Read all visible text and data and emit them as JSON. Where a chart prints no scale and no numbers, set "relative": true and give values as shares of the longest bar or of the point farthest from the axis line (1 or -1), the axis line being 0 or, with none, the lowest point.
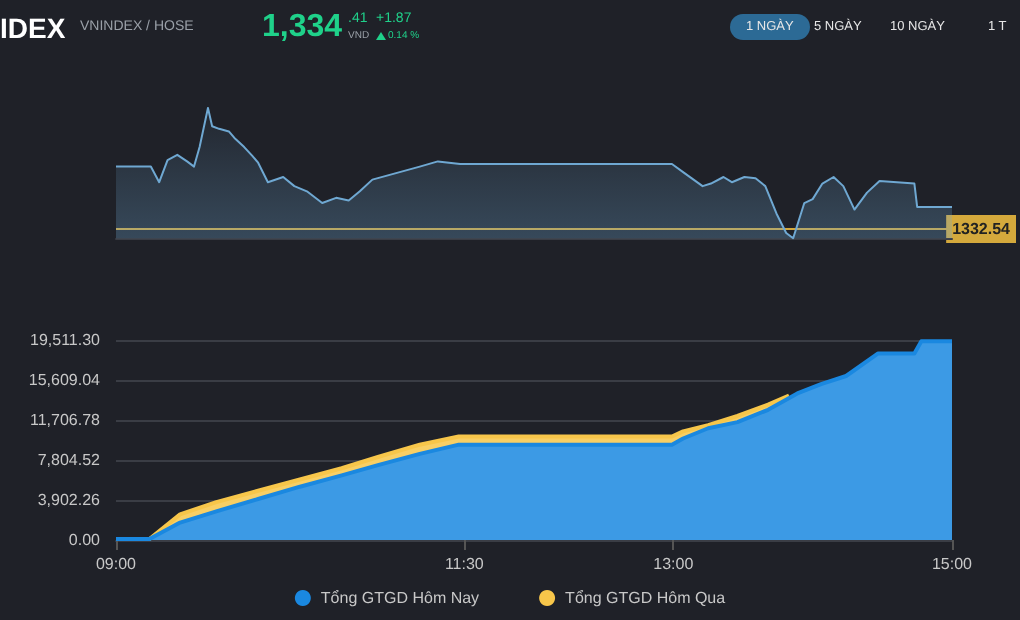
{
  "chart_data": [
    {
      "type": "other",
      "title": "IDEX",
      "subtitle": "VNINDEX / HOSE",
      "annotations": [
        "1,334",
        ".41",
        "VND",
        "+1.87",
        "0.14 %",
        "1 NGÀY",
        "5 NGÀY",
        "10 NGÀY",
        "1 T"
      ]
    },
    {
      "type": "area",
      "relative": true,
      "xlim": [
        9,
        15
      ],
      "x": [
        9.0,
        9.25,
        9.31,
        9.37,
        9.44,
        9.51,
        9.56,
        9.6,
        9.66,
        9.69,
        9.74,
        9.81,
        9.85,
        9.92,
        9.98,
        10.02,
        10.09,
        10.2,
        10.28,
        10.37,
        10.48,
        10.58,
        10.67,
        10.75,
        10.84,
        11.01,
        11.18,
        11.31,
        11.47,
        12.99,
        13.08,
        13.21,
        13.27,
        13.36,
        13.42,
        13.51,
        13.59,
        13.66,
        13.74,
        13.81,
        13.86,
        13.94,
        14.0,
        14.07,
        14.15,
        14.22,
        14.3,
        14.39,
        14.48,
        14.73,
        14.75,
        15.0
      ],
      "series": [
        {
          "color": "#6fa8d2",
          "values": [
            0.55,
            0.55,
            0.43,
            0.6,
            0.64,
            0.59,
            0.55,
            0.7,
            1,
            0.86,
            0.84,
            0.82,
            0.77,
            0.7,
            0.63,
            0.58,
            0.43,
            0.47,
            0.4,
            0.36,
            0.27,
            0.31,
            0.29,
            0.36,
            0.45,
            0.5,
            0.55,
            0.59,
            0.57,
            0.57,
            0.5,
            0.4,
            0.42,
            0.47,
            0.43,
            0.47,
            0.46,
            0.4,
            0.19,
            0.04,
            0,
            0.27,
            0.3,
            0.42,
            0.47,
            0.4,
            0.22,
            0.35,
            0.44,
            0.42,
            0.24,
            0.24
          ]
        }
      ],
      "annotations": [
        "1332.54"
      ],
      "ref_lines": [
        {
          "axis": "y",
          "value": 0.07,
          "color": "#d4a93c"
        }
      ]
    },
    {
      "type": "area",
      "xlim": [
        9,
        15
      ],
      "xticks": [
        {
          "value": 9,
          "label": "09:00"
        },
        {
          "value": 11.5,
          "label": "11:30"
        },
        {
          "value": 13,
          "label": "13:00"
        },
        {
          "value": 15,
          "label": "15:00"
        }
      ],
      "ylim": [
        0,
        19511.3
      ],
      "yticks": [
        {
          "value": 0,
          "label": "0.00"
        },
        {
          "value": 3902.26,
          "label": "3,902.26"
        },
        {
          "value": 7804.52,
          "label": "7,804.52"
        },
        {
          "value": 11706.78,
          "label": "11,706.78"
        },
        {
          "value": 15609.04,
          "label": "15,609.04"
        },
        {
          "value": 19511.3,
          "label": "19,511.30"
        }
      ],
      "grid": "y",
      "legend": "bottom",
      "series": [
        {
          "name": "Tổng GTGD Hôm Nay",
          "color": "#1a88e0",
          "x": [
            9.0,
            9.24,
            9.46,
            9.72,
            10.02,
            10.32,
            10.62,
            10.88,
            11.18,
            11.46,
            12.99,
            13.07,
            13.25,
            13.46,
            13.68,
            13.89,
            14.06,
            14.24,
            14.47,
            14.73,
            14.78,
            15.0
          ],
          "values": [
            100,
            100,
            1700,
            2800,
            4000,
            5200,
            6300,
            7300,
            8400,
            9300,
            9300,
            9900,
            10900,
            11500,
            12700,
            14300,
            15200,
            16000,
            18200,
            18200,
            19400,
            19400
          ]
        },
        {
          "name": "Tổng GTGD Hôm Qua",
          "color": "#f7c64a",
          "x": [
            9.0,
            9.24,
            9.46,
            9.72,
            10.02,
            10.32,
            10.62,
            10.88,
            11.18,
            11.46,
            12.99,
            13.07,
            13.25,
            13.46,
            13.68,
            13.83
          ],
          "values": [
            100,
            100,
            2500,
            3700,
            4800,
            5900,
            7000,
            8100,
            9300,
            10100,
            10100,
            10600,
            11200,
            12100,
            13200,
            14100
          ]
        }
      ]
    }
  ]
}
